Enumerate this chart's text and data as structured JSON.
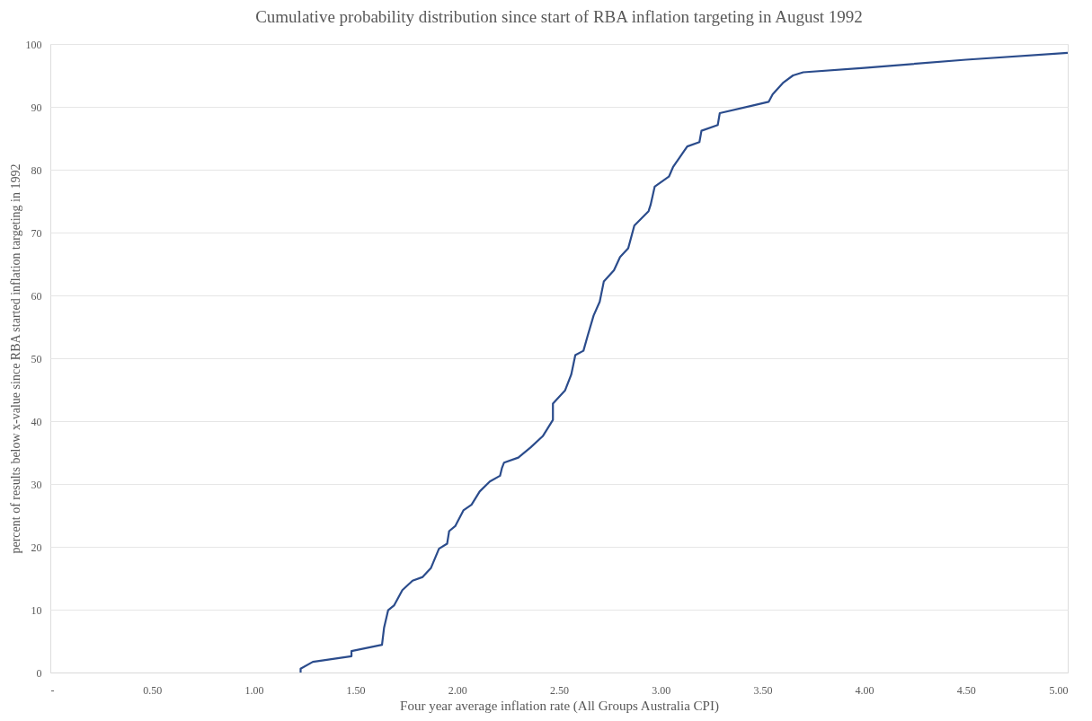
{
  "chart_data": {
    "type": "line",
    "title": "Cumulative probability distribution since start of RBA inflation targeting in August 1992",
    "xlabel": "Four year average inflation rate (All Groups Australia CPI)",
    "ylabel": "percent of results below x-value since RBA started inflation targeting in 1992",
    "series": [
      {
        "color": "#2b4c8c",
        "x": [
          1.23,
          1.23,
          1.29,
          1.48,
          1.48,
          1.63,
          1.64,
          1.66,
          1.69,
          1.73,
          1.78,
          1.83,
          1.87,
          1.91,
          1.95,
          1.96,
          1.99,
          2.03,
          2.07,
          2.11,
          2.16,
          2.21,
          2.22,
          2.23,
          2.3,
          2.36,
          2.42,
          2.47,
          2.47,
          2.53,
          2.56,
          2.58,
          2.62,
          2.64,
          2.67,
          2.7,
          2.72,
          2.77,
          2.8,
          2.84,
          2.87,
          2.94,
          2.95,
          2.97,
          3.04,
          3.06,
          3.13,
          3.19,
          3.2,
          3.28,
          3.29,
          3.45,
          3.53,
          3.55,
          3.6,
          3.65,
          3.7,
          4.0,
          4.5,
          5.0
        ],
        "values": [
          0,
          0.6,
          1.7,
          2.6,
          3.4,
          4.4,
          7.1,
          9.9,
          10.7,
          13.1,
          14.6,
          15.2,
          16.6,
          19.7,
          20.5,
          22.5,
          23.3,
          25.8,
          26.7,
          28.8,
          30.4,
          31.3,
          32.6,
          33.4,
          34.2,
          35.8,
          37.6,
          40.2,
          42.8,
          44.9,
          47.4,
          50.5,
          51.2,
          53.5,
          56.8,
          59.0,
          62.2,
          64.0,
          66.1,
          67.5,
          71.1,
          73.4,
          74.4,
          77.3,
          78.9,
          80.4,
          83.7,
          84.4,
          86.2,
          87.1,
          89.0,
          90.2,
          90.8,
          92.0,
          93.8,
          95.0,
          95.5,
          96.2,
          97.5,
          98.6
        ]
      }
    ],
    "xlim": [
      0,
      5
    ],
    "xticks": [
      {
        "value": 0,
        "label": "-"
      },
      {
        "value": 0.5,
        "label": "0.50"
      },
      {
        "value": 1,
        "label": "1.00"
      },
      {
        "value": 1.5,
        "label": "1.50"
      },
      {
        "value": 2,
        "label": "2.00"
      },
      {
        "value": 2.5,
        "label": "2.50"
      },
      {
        "value": 3,
        "label": "3.00"
      },
      {
        "value": 3.5,
        "label": "3.50"
      },
      {
        "value": 4,
        "label": "4.00"
      },
      {
        "value": 4.5,
        "label": "4.50"
      },
      {
        "value": 5,
        "label": "5.00"
      }
    ],
    "ylim": [
      0,
      100
    ],
    "yticks": [
      0,
      10,
      20,
      30,
      40,
      50,
      60,
      70,
      80,
      90,
      100
    ],
    "grid": "y",
    "marker": "none",
    "line_style": "solid"
  }
}
